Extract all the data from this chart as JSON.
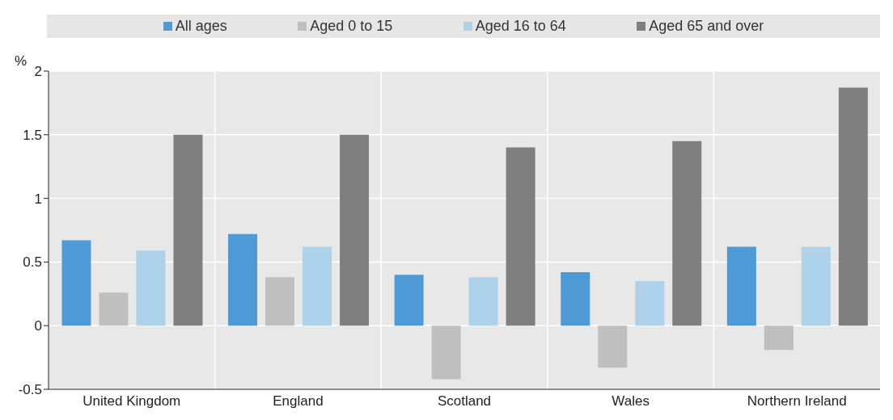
{
  "chart_data": {
    "type": "bar",
    "ylabel": "%",
    "categories": [
      "United Kingdom",
      "England",
      "Scotland",
      "Wales",
      "Northern Ireland"
    ],
    "series": [
      {
        "name": "All ages",
        "color": "#4e9ad6",
        "values": [
          0.67,
          0.72,
          0.4,
          0.42,
          0.62
        ]
      },
      {
        "name": "Aged 0 to 15",
        "color": "#bfbfbf",
        "values": [
          0.26,
          0.38,
          -0.42,
          -0.33,
          -0.19
        ]
      },
      {
        "name": "Aged 16 to 64",
        "color": "#aed2ea",
        "values": [
          0.59,
          0.62,
          0.38,
          0.35,
          0.62
        ]
      },
      {
        "name": "Aged 65 and over",
        "color": "#7f7f7f",
        "values": [
          1.5,
          1.5,
          1.4,
          1.45,
          1.87
        ]
      }
    ],
    "ylim": [
      -0.5,
      2
    ],
    "yticks": [
      -0.5,
      0,
      0.5,
      1,
      1.5,
      2
    ],
    "grid": true,
    "legend": "top"
  }
}
